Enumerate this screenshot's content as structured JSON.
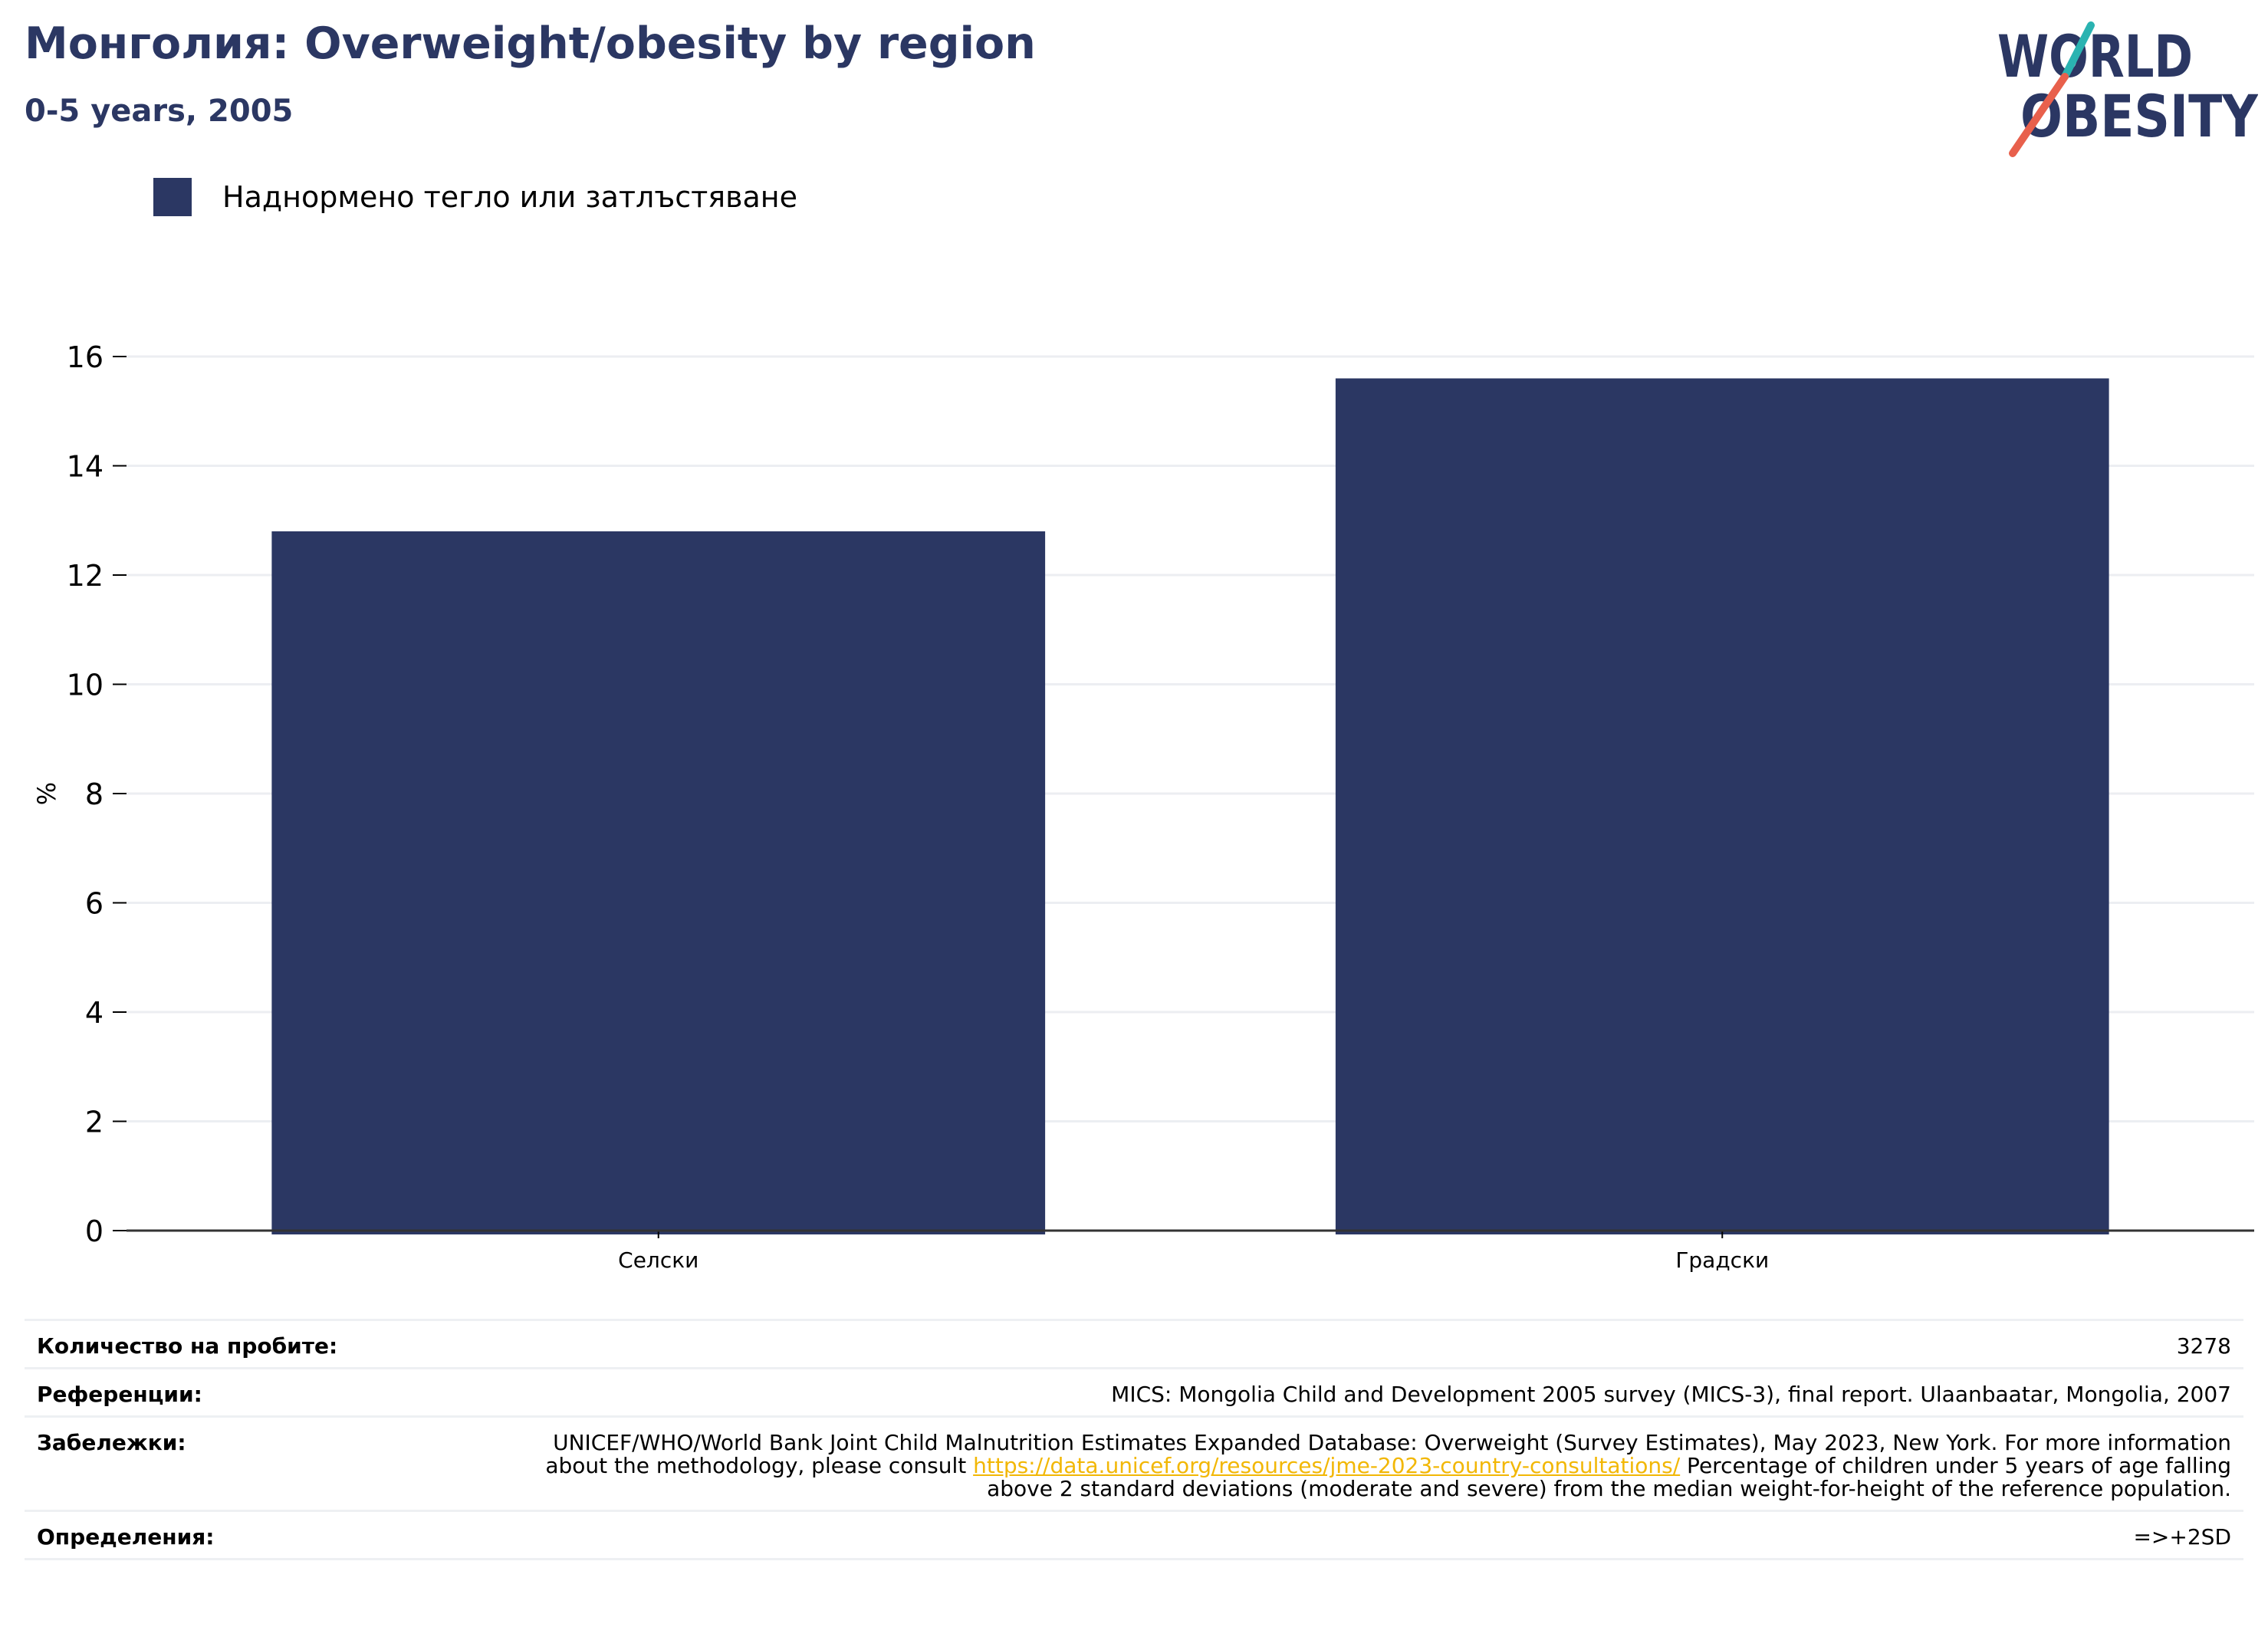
{
  "header": {
    "title": "Монголия: Overweight/obesity by region",
    "subtitle": "0-5 years, 2005"
  },
  "logo": {
    "line1": "WORLD",
    "line2": "OBESITY",
    "text_color": "#2b3763",
    "accent_teal": "#2ab3b1",
    "accent_red": "#e8604c"
  },
  "legend": {
    "label": "Наднормено тегло или затлъстяване",
    "color": "#2b3763"
  },
  "chart_data": {
    "type": "bar",
    "categories": [
      "Селски",
      "Градски"
    ],
    "series": [
      {
        "name": "Наднормено тегло или затлъстяване",
        "values": [
          12.8,
          15.6
        ],
        "color": "#2b3763"
      }
    ],
    "ylabel": "%",
    "ylim": [
      0,
      16
    ],
    "yticks": [
      0,
      2,
      4,
      6,
      8,
      10,
      12,
      14,
      16
    ],
    "grid": true,
    "legend_position": "top-left"
  },
  "info": {
    "sample_size_label": "Количество на пробите:",
    "sample_size_value": "3278",
    "references_label": "Референции:",
    "references_value": "MICS: Mongolia Child and Development 2005 survey (MICS-3), final report. Ulaanbaatar, Mongolia, 2007",
    "notes_label": "Забележки:",
    "notes_text_before": "UNICEF/WHO/World Bank Joint Child Malnutrition Estimates Expanded Database: Overweight (Survey Estimates), May 2023, New York. For more information about the methodology, please consult ",
    "notes_link": "https://data.unicef.org/resources/jme-2023-country-consultations/",
    "notes_text_after": " Percentage of children under 5 years of age falling above 2 standard deviations (moderate and severe) from the median weight-for-height of the reference population.",
    "definitions_label": "Определения:",
    "definitions_value": "=>+2SD"
  }
}
